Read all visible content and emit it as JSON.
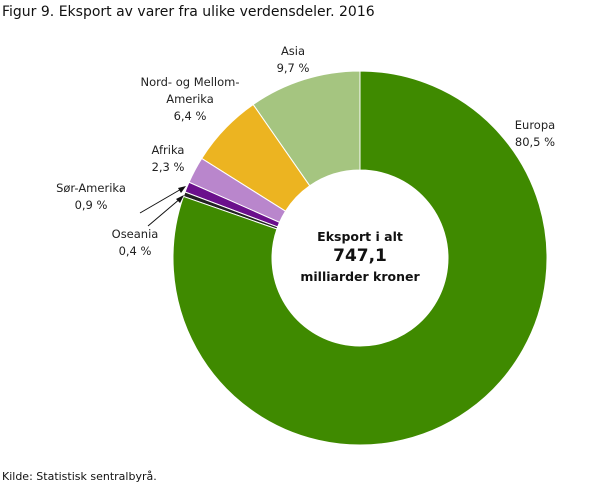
{
  "chart_data": {
    "type": "donut",
    "title": "Figur 9. Eksport  av varer fra ulike verdensdeler. 2016",
    "categories": [
      "Europa",
      "Oseania",
      "Sør-Amerika",
      "Afrika",
      "Nord- og Mellom-Amerika",
      "Asia"
    ],
    "values": [
      80.5,
      0.4,
      0.9,
      2.3,
      6.4,
      9.7
    ],
    "value_labels": [
      "80,5 %",
      "0,4 %",
      "0,9 %",
      "2,3 %",
      "6,4 %",
      "9,7 %"
    ],
    "colors": [
      "#3f8a00",
      "#222222",
      "#6b0f8c",
      "#b986cc",
      "#ecb421",
      "#a5c580"
    ],
    "center_label": "Eksport i alt",
    "center_value": "747,1",
    "center_unit": "milliarder kroner",
    "source": "Kilde: Statistisk sentralbyrå."
  }
}
